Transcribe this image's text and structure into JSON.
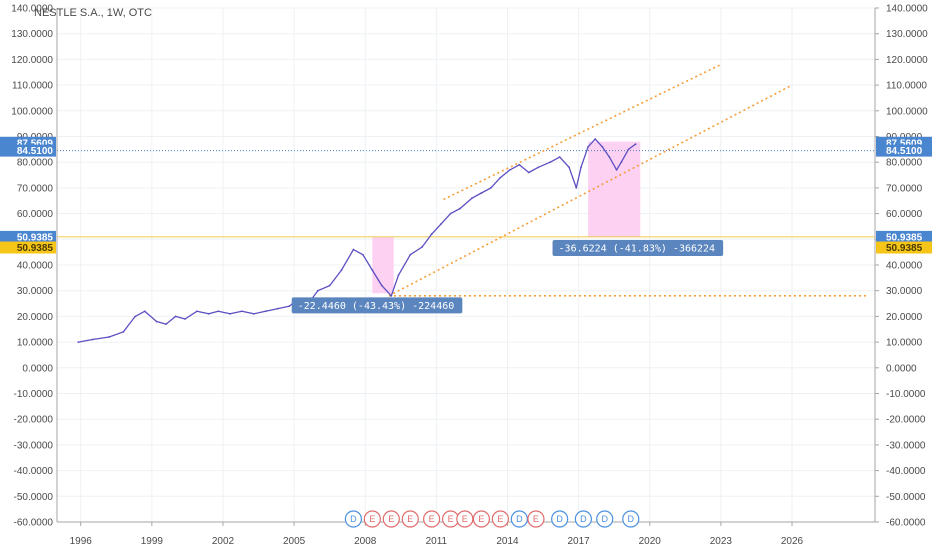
{
  "chart_title": "NESTLE S.A., 1W, OTC",
  "colors": {
    "price_line": "#5b4fc2",
    "hline_blue": "#4a7fc1",
    "hline_yellow": "#f2c94c",
    "trend_orange": "#f59d38",
    "highlight_pink": "#fbc9f0",
    "anno_bg": "#5a85be",
    "tag_blue": "#4a86d0",
    "tag_yellow": "#f5c518",
    "grid": "#eef1f4",
    "dividend": "#4a90e2",
    "earnings": "#e06b6b"
  },
  "chart_data": {
    "type": "line",
    "interval": "1W",
    "xlim": [
      1995,
      2029.5
    ],
    "ylim": [
      -60,
      140
    ],
    "y_ticks": [
      140,
      130,
      120,
      110,
      100,
      90,
      80,
      70,
      60,
      50,
      40,
      30,
      20,
      10,
      0,
      -10,
      -20,
      -30,
      -40,
      -50,
      -60
    ],
    "y_tick_labels": [
      "140.0000",
      "130.0000",
      "120.0000",
      "110.0000",
      "100.0000",
      "90.0000",
      "80.0000",
      "70.0000",
      "60.0000",
      "50.0000",
      "40.0000",
      "30.0000",
      "20.0000",
      "10.0000",
      "0.0000",
      "-10.0000",
      "-20.0000",
      "-30.0000",
      "-40.0000",
      "-50.0000",
      "-60.0000"
    ],
    "x_ticks": [
      1996,
      1999,
      2002,
      2005,
      2008,
      2011,
      2014,
      2017,
      2020,
      2023,
      2026
    ],
    "x_tick_labels": [
      "1996",
      "1999",
      "2002",
      "2005",
      "2008",
      "2011",
      "2014",
      "2017",
      "2020",
      "2023",
      "2026"
    ],
    "series": [
      {
        "x": [
          1995.9,
          1996.5,
          1997.2,
          1997.8,
          1998.3,
          1998.7,
          1999.2,
          1999.6,
          2000.0,
          2000.4,
          2000.9,
          2001.4,
          2001.8,
          2002.3,
          2002.8,
          2003.3,
          2003.8,
          2004.3,
          2004.8,
          2005.2,
          2005.6,
          2006.0,
          2006.5,
          2007.0,
          2007.5,
          2007.9,
          2008.3,
          2008.7,
          2009.1,
          2009.4,
          2009.9,
          2010.4,
          2010.8,
          2011.2,
          2011.6,
          2012.0,
          2012.5,
          2012.9,
          2013.3,
          2013.7,
          2014.1,
          2014.5,
          2014.9,
          2015.3,
          2015.8,
          2016.2,
          2016.6,
          2016.9,
          2017.1,
          2017.4,
          2017.7,
          2018.0,
          2018.3,
          2018.6,
          2018.8,
          2019.1,
          2019.4
        ],
        "y": [
          10,
          11,
          12,
          14,
          20,
          22,
          18,
          17,
          20,
          19,
          22,
          21,
          22,
          21,
          22,
          21,
          22,
          23,
          24,
          27,
          25,
          30,
          32,
          38,
          46,
          44,
          38,
          32,
          28,
          36,
          44,
          47,
          52,
          56,
          60,
          62,
          66,
          68,
          70,
          74,
          77,
          79,
          76,
          78,
          80,
          82,
          78,
          70,
          78,
          86,
          89,
          86,
          82,
          77,
          80,
          85,
          87
        ]
      }
    ],
    "horizontal_lines": [
      {
        "y": 84.51,
        "label": "84.5100",
        "style": "dotted-blue"
      },
      {
        "y": 50.9385,
        "label": "50.9385",
        "style": "solid-yellow"
      }
    ],
    "price_tags": [
      {
        "y": 87.5609,
        "label": "87.5609",
        "color": "blue"
      },
      {
        "y": 84.51,
        "label": "84.5100",
        "color": "blue"
      },
      {
        "y": 50.9385,
        "label": "50.9385",
        "color": "blue"
      },
      {
        "y": 46.8,
        "label": "50.9385",
        "color": "yellow"
      }
    ],
    "trend_lines": [
      {
        "x1": 2011.3,
        "y1": 65.5,
        "x2": 2023.0,
        "y2": 118
      },
      {
        "x1": 2009.0,
        "y1": 28,
        "x2": 2026.0,
        "y2": 110
      },
      {
        "x1": 2009.0,
        "y1": 28,
        "x2": 2029.2,
        "y2": 28
      }
    ],
    "highlight_zones": [
      {
        "x1": 2008.3,
        "x2": 2009.2,
        "y1": 29,
        "y2": 51
      },
      {
        "x1": 2017.4,
        "x2": 2019.6,
        "y1": 51,
        "y2": 88
      }
    ],
    "annotations": [
      {
        "text": "-22.4460 (-43.43%) -224460",
        "x": 2004.9,
        "y": 24.3
      },
      {
        "text": "-36.6224 (-41.83%) -366224",
        "x": 2015.9,
        "y": 46.6
      }
    ],
    "events": [
      {
        "label": "D",
        "kind": "dividend",
        "x": 2007.5
      },
      {
        "label": "E",
        "kind": "earnings",
        "x": 2008.3
      },
      {
        "label": "E",
        "kind": "earnings",
        "x": 2009.1
      },
      {
        "label": "E",
        "kind": "earnings",
        "x": 2009.9
      },
      {
        "label": "E",
        "kind": "earnings",
        "x": 2010.8
      },
      {
        "label": "E",
        "kind": "earnings",
        "x": 2011.6
      },
      {
        "label": "E",
        "kind": "earnings",
        "x": 2012.2
      },
      {
        "label": "E",
        "kind": "earnings",
        "x": 2012.9
      },
      {
        "label": "E",
        "kind": "earnings",
        "x": 2013.7
      },
      {
        "label": "D",
        "kind": "dividend",
        "x": 2014.5
      },
      {
        "label": "E",
        "kind": "earnings",
        "x": 2015.2
      },
      {
        "label": "D",
        "kind": "dividend",
        "x": 2016.2
      },
      {
        "label": "D",
        "kind": "dividend",
        "x": 2017.2
      },
      {
        "label": "D",
        "kind": "dividend",
        "x": 2018.1
      },
      {
        "label": "D",
        "kind": "dividend",
        "x": 2019.2
      }
    ]
  }
}
